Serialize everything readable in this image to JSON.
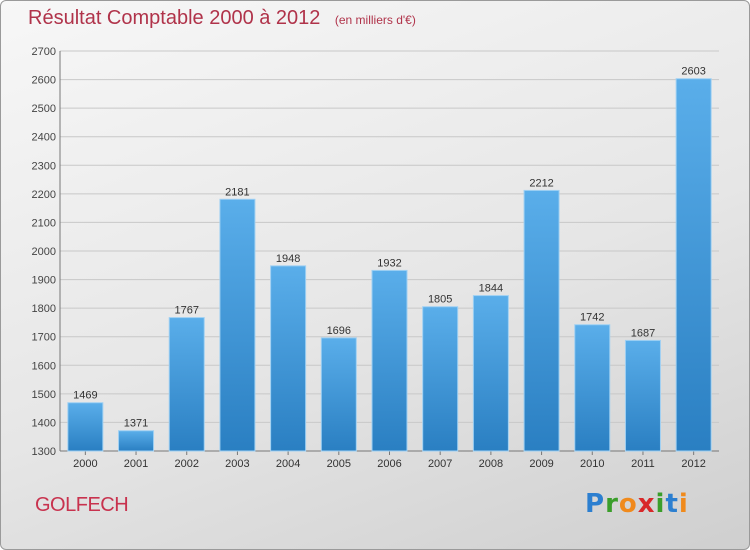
{
  "chart_data": {
    "type": "bar",
    "title": "Résultat Comptable 2000 à 2012",
    "subtitle": "(en milliers d'€)",
    "categories": [
      "2000",
      "2001",
      "2002",
      "2003",
      "2004",
      "2005",
      "2006",
      "2007",
      "2008",
      "2009",
      "2010",
      "2011",
      "2012"
    ],
    "values": [
      1469,
      1371,
      1767,
      2181,
      1948,
      1696,
      1932,
      1805,
      1844,
      2212,
      1742,
      1687,
      2603
    ],
    "ylim": [
      1300,
      2700
    ],
    "yticks": [
      1300,
      1400,
      1500,
      1600,
      1700,
      1800,
      1900,
      2000,
      2100,
      2200,
      2300,
      2400,
      2500,
      2600,
      2700
    ],
    "grid": true,
    "xlabel": "",
    "ylabel": "",
    "colors": {
      "bar_light": "#5aaeea",
      "bar_dark": "#2a7fc2",
      "title": "#b0334a",
      "grid": "#c8c8c8"
    }
  },
  "footer": {
    "commune": "GOLFECH",
    "brand_letters": [
      {
        "ch": "P",
        "color": "#2c7fd0"
      },
      {
        "ch": "r",
        "color": "#3a9e2a"
      },
      {
        "ch": "o",
        "color": "#f08a1c"
      },
      {
        "ch": "x",
        "color": "#d8282a"
      },
      {
        "ch": "i",
        "color": "#3a9e2a"
      },
      {
        "ch": "t",
        "color": "#2c7fd0"
      },
      {
        "ch": "i",
        "color": "#f08a1c"
      }
    ]
  }
}
